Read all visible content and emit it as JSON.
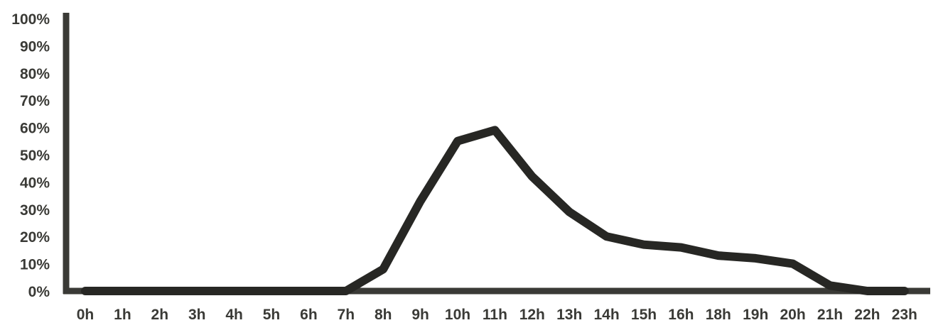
{
  "chart_data": {
    "type": "line",
    "categories": [
      "0h",
      "1h",
      "2h",
      "3h",
      "4h",
      "5h",
      "6h",
      "7h",
      "8h",
      "9h",
      "10h",
      "11h",
      "12h",
      "13h",
      "14h",
      "15h",
      "16h",
      "18h",
      "19h",
      "20h",
      "21h",
      "22h",
      "23h"
    ],
    "values": [
      0,
      0,
      0,
      0,
      0,
      0,
      0,
      0,
      8,
      33,
      55,
      59,
      42,
      29,
      20,
      17,
      16,
      13,
      12,
      10,
      2,
      0,
      0
    ],
    "ylim": [
      0,
      100
    ],
    "yticks": [
      "0%",
      "10%",
      "20%",
      "30%",
      "40%",
      "50%",
      "60%",
      "70%",
      "80%",
      "90%",
      "100%"
    ],
    "ytick_values": [
      0,
      10,
      20,
      30,
      40,
      50,
      60,
      70,
      80,
      90,
      100
    ],
    "grid": false,
    "legend": "none",
    "line_color": "#272724",
    "axis_color": "#3a3a36"
  }
}
